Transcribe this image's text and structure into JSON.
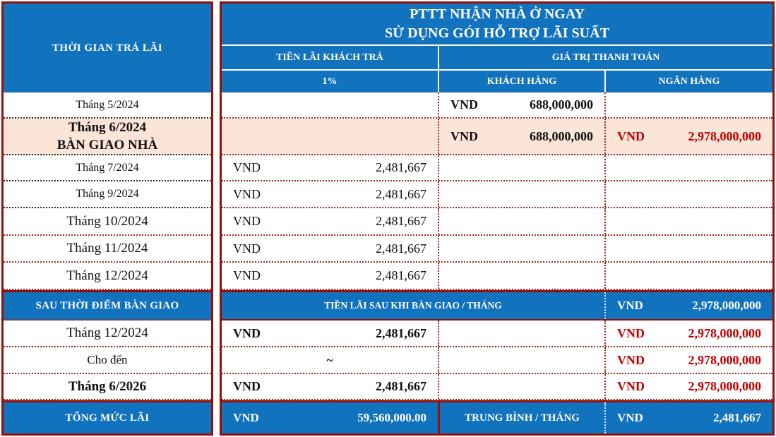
{
  "title": {
    "line1": "PTTT NHẬN NHÀ Ở NGAY",
    "line2": "SỬ DỤNG GÓI HỖ TRỢ LÃI SUẤT"
  },
  "headers": {
    "time": "THỜI GIAN TRẢ LÃI",
    "interest_group": "TIỀN LÃI KHÁCH TRẢ",
    "interest_rate": "1%",
    "payment_group": "GIÁ TRỊ THANH TOÁN",
    "customer": "KHÁCH HÀNG",
    "bank": "NGÂN HÀNG"
  },
  "currency_label": "VND",
  "schedule_rows": [
    {
      "time": "Tháng 5/2024",
      "interest_amount": "",
      "customer_amount": "688,000,000",
      "bank_amount": "",
      "highlight": false
    },
    {
      "time": "Tháng 6/2024",
      "time_sub": "BÀN GIAO NHÀ",
      "interest_amount": "",
      "customer_amount": "688,000,000",
      "bank_amount": "2,978,000,000",
      "highlight": true
    },
    {
      "time": "Tháng 7/2024",
      "interest_amount": "2,481,667",
      "customer_amount": "",
      "bank_amount": "",
      "highlight": false
    },
    {
      "time": "Tháng 9/2024",
      "interest_amount": "2,481,667",
      "customer_amount": "",
      "bank_amount": "",
      "highlight": false
    },
    {
      "time": "Tháng 10/2024",
      "interest_amount": "2,481,667",
      "customer_amount": "",
      "bank_amount": "",
      "highlight": false
    },
    {
      "time": "Tháng 11/2024",
      "interest_amount": "2,481,667",
      "customer_amount": "",
      "bank_amount": "",
      "highlight": false
    },
    {
      "time": "Tháng 12/2024",
      "interest_amount": "2,481,667",
      "customer_amount": "",
      "bank_amount": "",
      "highlight": false
    }
  ],
  "section_row": {
    "time": "SAU THỜI ĐIỂM BÀN GIAO",
    "label": "TIỀN LÃI SAU KHI BÀN GIAO / THÁNG",
    "bank_amount": "2,978,000,000"
  },
  "post_rows": [
    {
      "time": "Tháng 12/2024",
      "interest_amount": "2,481,667",
      "bank_amount": "2,978,000,000",
      "interest_bold": true,
      "time_bold": false
    },
    {
      "time": "Cho đến",
      "interest_amount": "~",
      "bank_amount": "2,978,000,000",
      "interest_bold": true,
      "time_bold": false
    },
    {
      "time": "Tháng 6/2026",
      "interest_amount": "2,481,667",
      "bank_amount": "2,978,000,000",
      "interest_bold": true,
      "time_bold": true
    }
  ],
  "total_row": {
    "time": "TỔNG MỨC LÃI",
    "interest_amount": "59,560,000.00",
    "label": "TRUNG BÌNH / THÁNG",
    "bank_amount": "2,481,667"
  },
  "colors": {
    "header_blue": "#1172BD",
    "border_dark_red": "#96100B",
    "highlight_pink": "#FBE5D6",
    "negative_red": "#C00000"
  }
}
